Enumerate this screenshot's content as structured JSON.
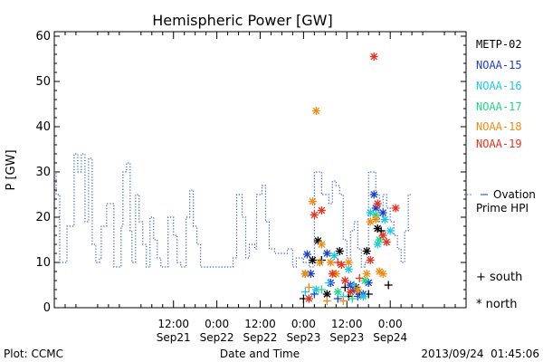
{
  "chart_data": {
    "type": "scatter",
    "title": "Hemispheric Power [GW]",
    "ylabel": "P [GW]",
    "xlabel": "Date and Time",
    "ylim": [
      0,
      61
    ],
    "xlim": [
      -21,
      93
    ],
    "yticks": [
      0,
      10,
      20,
      30,
      40,
      50,
      60
    ],
    "xticks": [
      {
        "x": 12,
        "top": "12:00",
        "bottom": "Sep21"
      },
      {
        "x": 24,
        "top": "0:00",
        "bottom": "Sep22"
      },
      {
        "x": 36,
        "top": "12:00",
        "bottom": "Sep22"
      },
      {
        "x": 48,
        "top": "0:00",
        "bottom": "Sep23"
      },
      {
        "x": 60,
        "top": "12:00",
        "bottom": "Sep23"
      },
      {
        "x": 72,
        "top": "0:00",
        "bottom": "Sep24"
      }
    ],
    "ovation": {
      "name": "Ovation Prime HPI",
      "color": "#2a5fc8",
      "steps": [
        [
          -21,
          30
        ],
        [
          -20.5,
          25
        ],
        [
          -19.5,
          10
        ],
        [
          -17.5,
          18
        ],
        [
          -15.5,
          34
        ],
        [
          -14.5,
          30
        ],
        [
          -13.5,
          34
        ],
        [
          -12.5,
          19
        ],
        [
          -11.5,
          33
        ],
        [
          -10.5,
          14
        ],
        [
          -9.5,
          10
        ],
        [
          -8.5,
          11
        ],
        [
          -8,
          18
        ],
        [
          -6.5,
          23
        ],
        [
          -4.5,
          9
        ],
        [
          -2.5,
          18
        ],
        [
          -2,
          30
        ],
        [
          -1,
          32
        ],
        [
          0,
          17
        ],
        [
          0.5,
          10
        ],
        [
          1.5,
          25
        ],
        [
          2.5,
          19
        ],
        [
          3.5,
          14
        ],
        [
          4.5,
          9
        ],
        [
          5.5,
          20
        ],
        [
          6.5,
          15
        ],
        [
          7.5,
          11
        ],
        [
          8.5,
          9
        ],
        [
          10.5,
          20
        ],
        [
          12,
          16
        ],
        [
          13,
          10
        ],
        [
          14,
          9
        ],
        [
          15.5,
          20
        ],
        [
          16.5,
          26
        ],
        [
          17.5,
          18
        ],
        [
          18.5,
          14
        ],
        [
          19.5,
          9
        ],
        [
          23,
          9
        ],
        [
          27.5,
          9
        ],
        [
          28.5,
          11
        ],
        [
          29.5,
          25
        ],
        [
          31,
          20
        ],
        [
          32,
          11
        ],
        [
          33,
          14
        ],
        [
          34.5,
          13
        ],
        [
          35,
          25
        ],
        [
          36.5,
          27
        ],
        [
          37.5,
          19
        ],
        [
          38.5,
          13
        ],
        [
          40,
          12
        ],
        [
          43.5,
          13
        ],
        [
          44.5,
          13
        ],
        [
          45,
          9
        ],
        [
          46,
          11
        ],
        [
          48,
          10
        ],
        [
          49.5,
          9
        ],
        [
          51,
          30
        ],
        [
          53,
          25
        ],
        [
          55,
          23
        ],
        [
          56,
          28
        ],
        [
          57,
          27
        ],
        [
          58,
          25
        ],
        [
          59,
          15
        ],
        [
          60,
          11
        ],
        [
          61,
          17
        ],
        [
          62,
          19
        ],
        [
          63,
          13
        ],
        [
          64,
          9
        ],
        [
          65,
          10
        ],
        [
          66,
          30
        ],
        [
          68,
          25
        ],
        [
          69,
          19
        ],
        [
          70,
          25
        ],
        [
          71,
          22
        ],
        [
          72,
          19
        ],
        [
          73,
          16
        ],
        [
          74,
          13
        ],
        [
          75,
          10
        ],
        [
          76,
          17
        ],
        [
          77,
          25
        ]
      ]
    },
    "series": [
      {
        "name": "METP-02",
        "color": "#000000",
        "points": [
          {
            "x": 48.0,
            "y": 2,
            "hemi": "south"
          },
          {
            "x": 48.5,
            "y": 7.5,
            "hemi": "north"
          },
          {
            "x": 50.5,
            "y": 10.5,
            "hemi": "north"
          },
          {
            "x": 52.0,
            "y": 14.8,
            "hemi": "north"
          },
          {
            "x": 53.0,
            "y": 10.5,
            "hemi": "south"
          },
          {
            "x": 54.5,
            "y": 3,
            "hemi": "north"
          },
          {
            "x": 58.0,
            "y": 12.5,
            "hemi": "north"
          },
          {
            "x": 59.5,
            "y": 4.5,
            "hemi": "south"
          },
          {
            "x": 60.5,
            "y": 2.5,
            "hemi": "south"
          },
          {
            "x": 62.5,
            "y": 4.5,
            "hemi": "north"
          },
          {
            "x": 63.5,
            "y": 3,
            "hemi": "south"
          },
          {
            "x": 65.5,
            "y": 12.5,
            "hemi": "north"
          },
          {
            "x": 66.0,
            "y": 3,
            "hemi": "south"
          },
          {
            "x": 68.5,
            "y": 17.5,
            "hemi": "north"
          },
          {
            "x": 69.5,
            "y": 17,
            "hemi": "south"
          },
          {
            "x": 71.5,
            "y": 5,
            "hemi": "south"
          }
        ]
      },
      {
        "name": "NOAA-15",
        "color": "#1a3fcc",
        "points": [
          {
            "x": 49.0,
            "y": 11.8,
            "hemi": "north"
          },
          {
            "x": 50.0,
            "y": 7.5,
            "hemi": "north"
          },
          {
            "x": 51.0,
            "y": 3,
            "hemi": "south"
          },
          {
            "x": 54.5,
            "y": 12,
            "hemi": "north"
          },
          {
            "x": 55.5,
            "y": 5.5,
            "hemi": "north"
          },
          {
            "x": 57.5,
            "y": 2,
            "hemi": "south"
          },
          {
            "x": 61.0,
            "y": 5,
            "hemi": "north"
          },
          {
            "x": 62.0,
            "y": 4,
            "hemi": "north"
          },
          {
            "x": 63.0,
            "y": 2.5,
            "hemi": "south"
          },
          {
            "x": 64.5,
            "y": 3,
            "hemi": "north"
          },
          {
            "x": 66.0,
            "y": 5.5,
            "hemi": "north"
          },
          {
            "x": 67.5,
            "y": 25,
            "hemi": "north"
          },
          {
            "x": 68.0,
            "y": 22,
            "hemi": "north"
          },
          {
            "x": 70.0,
            "y": 21,
            "hemi": "north"
          }
        ]
      },
      {
        "name": "NOAA-16",
        "color": "#1ec8e6",
        "points": [
          {
            "x": 48.5,
            "y": 3.5,
            "hemi": "south"
          },
          {
            "x": 51.5,
            "y": 4,
            "hemi": "north"
          },
          {
            "x": 55.0,
            "y": 5.5,
            "hemi": "south"
          },
          {
            "x": 56.5,
            "y": 11.5,
            "hemi": "north"
          },
          {
            "x": 59.0,
            "y": 2.5,
            "hemi": "south"
          },
          {
            "x": 60.5,
            "y": 8.5,
            "hemi": "north"
          },
          {
            "x": 62.0,
            "y": 5,
            "hemi": "south"
          },
          {
            "x": 64.5,
            "y": 2.5,
            "hemi": "north"
          },
          {
            "x": 66.5,
            "y": 21,
            "hemi": "north"
          },
          {
            "x": 68.5,
            "y": 14,
            "hemi": "north"
          },
          {
            "x": 70.5,
            "y": 19.5,
            "hemi": "north"
          },
          {
            "x": 72.0,
            "y": 17,
            "hemi": "north"
          }
        ]
      },
      {
        "name": "NOAA-17",
        "color": "#22d68a",
        "points": [
          {
            "x": 53.0,
            "y": 4,
            "hemi": "south"
          },
          {
            "x": 57.5,
            "y": 3.5,
            "hemi": "north"
          },
          {
            "x": 61.5,
            "y": 2,
            "hemi": "south"
          },
          {
            "x": 65.0,
            "y": 6,
            "hemi": "north"
          },
          {
            "x": 68.0,
            "y": 20.5,
            "hemi": "north"
          },
          {
            "x": 69.0,
            "y": 15,
            "hemi": "north"
          }
        ]
      },
      {
        "name": "NOAA-18",
        "color": "#f08c14",
        "points": [
          {
            "x": 48.5,
            "y": 7.5,
            "hemi": "north"
          },
          {
            "x": 49.5,
            "y": 4.5,
            "hemi": "south"
          },
          {
            "x": 50.5,
            "y": 23.5,
            "hemi": "north"
          },
          {
            "x": 51.5,
            "y": 43.5,
            "hemi": "north"
          },
          {
            "x": 52.5,
            "y": 10,
            "hemi": "north"
          },
          {
            "x": 53.0,
            "y": 14,
            "hemi": "north"
          },
          {
            "x": 54.5,
            "y": 1.5,
            "hemi": "south"
          },
          {
            "x": 55.5,
            "y": 10,
            "hemi": "north"
          },
          {
            "x": 57.0,
            "y": 7.5,
            "hemi": "north"
          },
          {
            "x": 59.0,
            "y": 1.5,
            "hemi": "south"
          },
          {
            "x": 60.5,
            "y": 10,
            "hemi": "north"
          },
          {
            "x": 63.0,
            "y": 4,
            "hemi": "north"
          },
          {
            "x": 65.5,
            "y": 7.5,
            "hemi": "north"
          },
          {
            "x": 66.5,
            "y": 19,
            "hemi": "north"
          },
          {
            "x": 68.0,
            "y": 19.5,
            "hemi": "north"
          },
          {
            "x": 69.0,
            "y": 8,
            "hemi": "north"
          },
          {
            "x": 70.0,
            "y": 7.5,
            "hemi": "north"
          }
        ]
      },
      {
        "name": "NOAA-19",
        "color": "#e6321e",
        "points": [
          {
            "x": 49.5,
            "y": 2,
            "hemi": "north"
          },
          {
            "x": 51.0,
            "y": 20.5,
            "hemi": "north"
          },
          {
            "x": 53.0,
            "y": 21.5,
            "hemi": "north"
          },
          {
            "x": 56.0,
            "y": 7.5,
            "hemi": "north"
          },
          {
            "x": 57.5,
            "y": 10,
            "hemi": "south"
          },
          {
            "x": 58.5,
            "y": 9.5,
            "hemi": "north"
          },
          {
            "x": 59.5,
            "y": 6,
            "hemi": "north"
          },
          {
            "x": 61.0,
            "y": 3.5,
            "hemi": "north"
          },
          {
            "x": 63.5,
            "y": 6.5,
            "hemi": "south"
          },
          {
            "x": 66.5,
            "y": 10.5,
            "hemi": "north"
          },
          {
            "x": 67.5,
            "y": 55.5,
            "hemi": "north"
          },
          {
            "x": 68.5,
            "y": 23,
            "hemi": "north"
          },
          {
            "x": 70.0,
            "y": 16,
            "hemi": "north"
          },
          {
            "x": 71.0,
            "y": 14.5,
            "hemi": "north"
          },
          {
            "x": 73.5,
            "y": 22,
            "hemi": "north"
          }
        ]
      }
    ],
    "legend": {
      "placement": "right",
      "hemispheres": [
        {
          "symbol": "+",
          "label": "south"
        },
        {
          "symbol": "*",
          "label": "north"
        }
      ]
    }
  },
  "footer": {
    "left": "Plot: CCMC",
    "right": "2013/09/24  01:45:06"
  }
}
